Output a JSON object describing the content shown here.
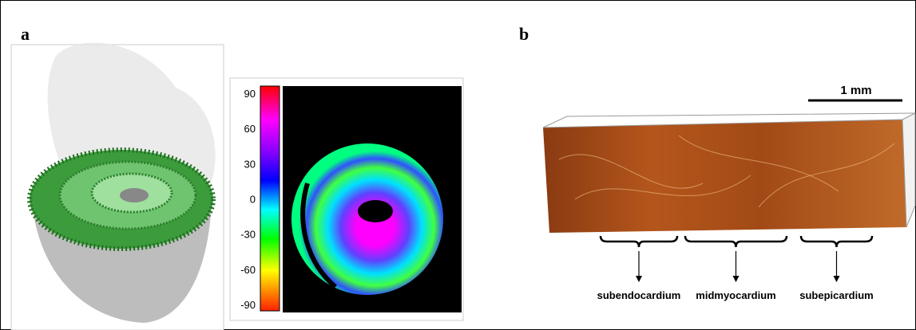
{
  "panel_a": {
    "label": "a",
    "colorbar": {
      "ticks": [
        "90",
        "60",
        "30",
        "0",
        "-30",
        "-60",
        "-90"
      ]
    }
  },
  "panel_b": {
    "label": "b",
    "scale_bar": "1 mm",
    "regions": [
      "subendocardium",
      "midmyocardium",
      "subepicardium"
    ]
  }
}
